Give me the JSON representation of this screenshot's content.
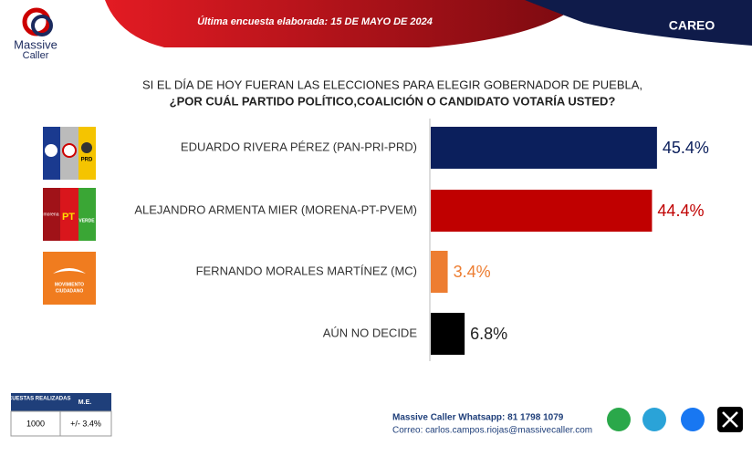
{
  "header": {
    "logo_line1": "Massive",
    "logo_line2": "Caller",
    "survey_date": "Última encuesta elaborada: 15 DE MAYO DE 2024",
    "tag": "CAREO"
  },
  "chart_data": {
    "type": "hbar",
    "title": "SI EL DÍA DE HOY FUERAN LAS ELECCIONES PARA ELEGIR GOBERNADOR DE PUEBLA,",
    "subtitle": "¿POR CUÁL PARTIDO POLÍTICO,COALICIÓN  O CANDIDATO VOTARÍA USTED?",
    "categories": [
      "EDUARDO RIVERA PÉREZ (PAN-PRI-PRD)",
      "ALEJANDRO ARMENTA MIER (MORENA-PT-PVEM)",
      "FERNANDO MORALES MARTÍNEZ (MC)",
      "AÚN NO DECIDE"
    ],
    "values": [
      45.4,
      44.4,
      3.4,
      6.8
    ],
    "value_labels": [
      "45.4%",
      "44.4%",
      "3.4%",
      "6.8%"
    ],
    "colors": [
      "#0b1f5c",
      "#c00000",
      "#ed7d31",
      "#000000"
    ]
  },
  "logos": {
    "prd": "PRD",
    "morena": "morena",
    "pt": "PT",
    "verde": "VERDE",
    "mc1": "MOVIMIENTO",
    "mc2": "CIUDADANO"
  },
  "footer": {
    "table": {
      "headers": [
        "ENCUESTAS REALIZADAS",
        "M.E."
      ],
      "row": [
        "1000",
        "+/- 3.4%"
      ]
    },
    "whatsapp": "Massive Caller Whatsapp: 81 1798 1079",
    "email": "Correo: carlos.campos.riojas@massivecaller.com"
  }
}
